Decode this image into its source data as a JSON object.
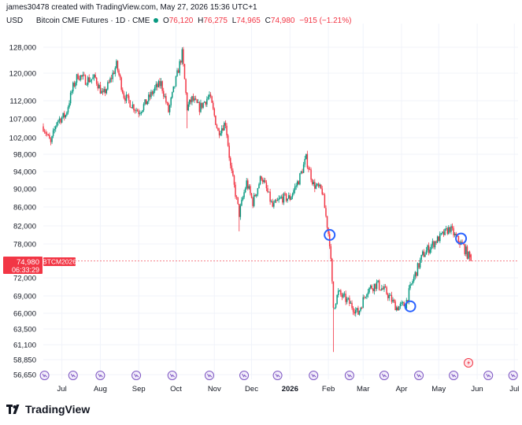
{
  "header": {
    "credit": "james30478 created with TradingView.com, May 27, 2026 15:36 UTC+1",
    "currency": "USD",
    "symbol": "Bitcoin CME Futures · 1D · CME",
    "o_label": "O",
    "o_value": "76,120",
    "h_label": "H",
    "h_value": "76,275",
    "l_label": "L",
    "l_value": "74,965",
    "c_label": "C",
    "c_value": "74,980",
    "change": "−915 (−1.21%)"
  },
  "price_tag": {
    "price": "74,980",
    "countdown": "06:33:29",
    "symbol": "BTCM2026"
  },
  "footer": {
    "brand": "TradingView"
  },
  "colors": {
    "up": "#089981",
    "down": "#f23645",
    "marker": "#2962ff",
    "event": "#7e57c2"
  },
  "chart_data": {
    "type": "candlestick",
    "y_ticks": [
      "128,000",
      "120,000",
      "112,000",
      "107,000",
      "102,000",
      "98,000",
      "94,000",
      "90,000",
      "86,000",
      "82,000",
      "78,000",
      "72,000",
      "69,000",
      "66,000",
      "63,500",
      "61,100",
      "58,850",
      "56,650"
    ],
    "y_tick_values": [
      128000,
      120000,
      112000,
      107000,
      102000,
      98000,
      94000,
      90000,
      86000,
      82000,
      78000,
      72000,
      69000,
      66000,
      63500,
      61100,
      58850,
      56650
    ],
    "x_ticks": [
      "Jul",
      "Aug",
      "Sep",
      "Oct",
      "Nov",
      "Dec",
      "2026",
      "Feb",
      "Mar",
      "Apr",
      "May",
      "Jun",
      "Jul"
    ],
    "x_tick_dates": [
      "2025-07-01",
      "2025-08-01",
      "2025-09-01",
      "2025-10-01",
      "2025-11-01",
      "2025-12-01",
      "2026-01-01",
      "2026-02-01",
      "2026-03-01",
      "2026-04-01",
      "2026-05-01",
      "2026-06-01",
      "2026-07-01"
    ],
    "x_range": [
      "2025-06-16",
      "2026-07-04"
    ],
    "last_price": 74980,
    "path": [
      [
        "2025-06-16",
        105000
      ],
      [
        "2025-06-22",
        100500
      ],
      [
        "2025-06-27",
        106500
      ],
      [
        "2025-07-04",
        108000
      ],
      [
        "2025-07-10",
        116000
      ],
      [
        "2025-07-14",
        119500
      ],
      [
        "2025-07-20",
        118000
      ],
      [
        "2025-07-28",
        118500
      ],
      [
        "2025-08-03",
        113500
      ],
      [
        "2025-08-08",
        117000
      ],
      [
        "2025-08-14",
        122500
      ],
      [
        "2025-08-20",
        113500
      ],
      [
        "2025-08-26",
        111000
      ],
      [
        "2025-09-01",
        109000
      ],
      [
        "2025-09-07",
        111500
      ],
      [
        "2025-09-14",
        115500
      ],
      [
        "2025-09-19",
        117000
      ],
      [
        "2025-09-25",
        109000
      ],
      [
        "2025-10-01",
        118000
      ],
      [
        "2025-10-06",
        126000
      ],
      [
        "2025-10-10",
        110000
      ],
      [
        "2025-10-14",
        112500
      ],
      [
        "2025-10-20",
        110000
      ],
      [
        "2025-10-28",
        113500
      ],
      [
        "2025-11-04",
        103500
      ],
      [
        "2025-11-10",
        106000
      ],
      [
        "2025-11-14",
        95000
      ],
      [
        "2025-11-21",
        84500
      ],
      [
        "2025-11-27",
        91500
      ],
      [
        "2025-12-02",
        87000
      ],
      [
        "2025-12-09",
        93000
      ],
      [
        "2025-12-18",
        86000
      ],
      [
        "2025-12-25",
        88000
      ],
      [
        "2026-01-01",
        88000
      ],
      [
        "2026-01-08",
        92000
      ],
      [
        "2026-01-14",
        97000
      ],
      [
        "2026-01-20",
        91000
      ],
      [
        "2026-01-27",
        89500
      ],
      [
        "2026-02-02",
        78500
      ],
      [
        "2026-02-05",
        67000
      ],
      [
        "2026-02-09",
        69500
      ],
      [
        "2026-02-17",
        68000
      ],
      [
        "2026-02-25",
        66000
      ],
      [
        "2026-03-04",
        70000
      ],
      [
        "2026-03-12",
        71000
      ],
      [
        "2026-03-20",
        69500
      ],
      [
        "2026-03-28",
        67000
      ],
      [
        "2026-04-04",
        67500
      ],
      [
        "2026-04-10",
        71500
      ],
      [
        "2026-04-18",
        76000
      ],
      [
        "2026-04-26",
        78000
      ],
      [
        "2026-05-04",
        80000
      ],
      [
        "2026-05-10",
        81500
      ],
      [
        "2026-05-16",
        79000
      ],
      [
        "2026-05-21",
        77500
      ],
      [
        "2026-05-27",
        74980
      ]
    ],
    "spikes": [
      [
        "2025-10-10",
        104500
      ],
      [
        "2025-11-21",
        80800
      ],
      [
        "2026-02-05",
        60000
      ]
    ],
    "markers": [
      [
        "2026-02-02",
        80000
      ],
      [
        "2026-04-08",
        67200
      ],
      [
        "2026-05-19",
        79200
      ]
    ],
    "event_dates": [
      "2025-06-17",
      "2025-07-10",
      "2025-08-01",
      "2025-08-30",
      "2025-09-28",
      "2025-10-28",
      "2025-11-25",
      "2025-12-22",
      "2026-01-20",
      "2026-02-18",
      "2026-03-18",
      "2026-04-15",
      "2026-05-13",
      "2026-06-10",
      "2026-06-30"
    ],
    "alert_event_date": "2026-05-25"
  }
}
